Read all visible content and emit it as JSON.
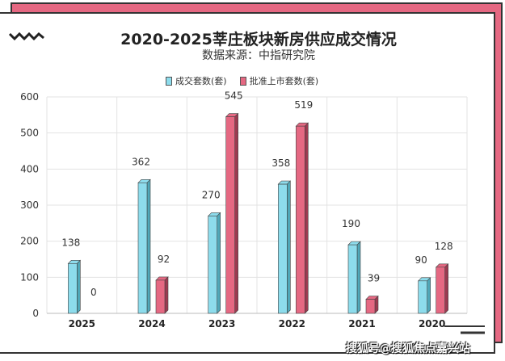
{
  "title": "2020-2025莘庄板块新房供应成交情况",
  "subtitle": "数据来源：中指研究院",
  "watermark": "搜狐号@搜狐焦点嘉兴站",
  "colors": {
    "deal": "#8ddcec",
    "approved": "#e56882",
    "accent": "#e56882"
  },
  "chart_data": {
    "type": "bar",
    "title": "2020-2025莘庄板块新房供应成交情况",
    "categories": [
      "2025",
      "2024",
      "2023",
      "2022",
      "2021",
      "2020"
    ],
    "series": [
      {
        "name": "成交套数(套)",
        "values": [
          138,
          362,
          270,
          358,
          190,
          90
        ]
      },
      {
        "name": "批准上市套数(套)",
        "values": [
          0,
          92,
          545,
          519,
          39,
          128
        ]
      }
    ],
    "yticks": [
      "0",
      "100",
      "200",
      "300",
      "400",
      "500",
      "600"
    ],
    "ylim": [
      0,
      600
    ],
    "grid": true,
    "legend": "top"
  }
}
